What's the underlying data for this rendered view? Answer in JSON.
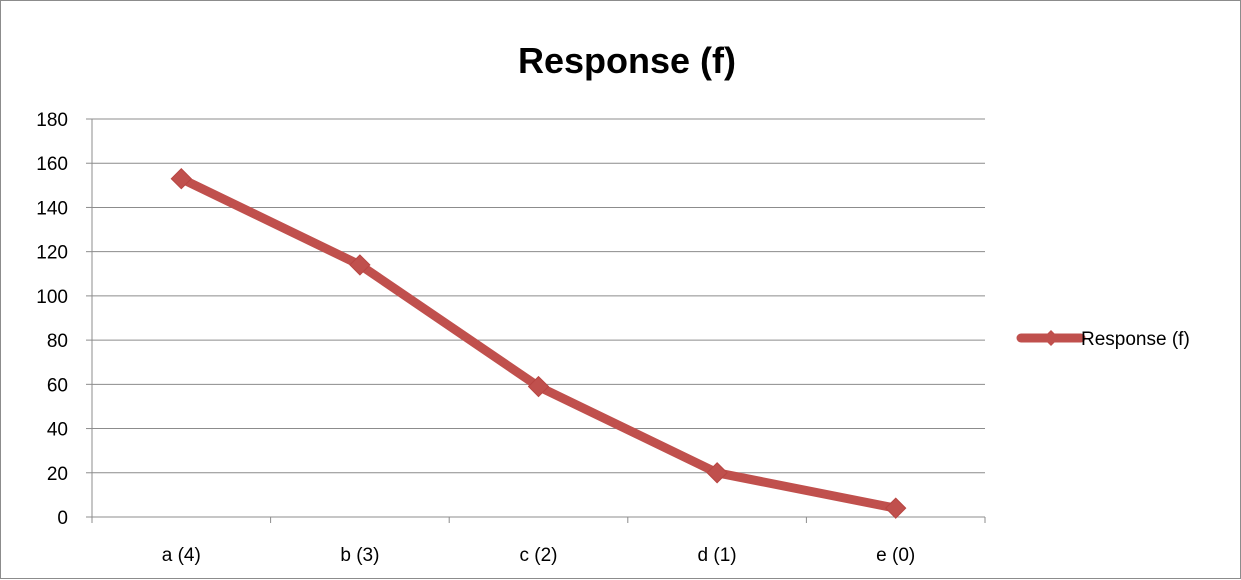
{
  "chart_data": {
    "type": "line",
    "title": "Response (f)",
    "categories": [
      "a (4)",
      "b (3)",
      "c (2)",
      "d (1)",
      "e (0)"
    ],
    "series": [
      {
        "name": "Response (f)",
        "values": [
          153,
          114,
          59,
          20,
          4
        ],
        "color": "#c0504d",
        "marker": "diamond"
      }
    ],
    "xlabel": "",
    "ylabel": "",
    "ylim": [
      0,
      180
    ],
    "yticks": [
      0,
      20,
      40,
      60,
      80,
      100,
      120,
      140,
      160,
      180
    ],
    "grid": true,
    "legend_position": "right"
  }
}
